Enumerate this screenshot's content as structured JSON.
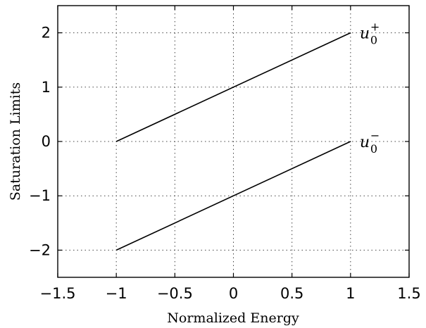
{
  "chart_data": {
    "type": "line",
    "xlabel": "Normalized Energy",
    "ylabel": "Saturation Limits",
    "xlim": [
      -1.5,
      1.5
    ],
    "ylim": [
      -2.5,
      2.5
    ],
    "xticks": [
      -1.5,
      -1,
      -0.5,
      0,
      0.5,
      1,
      1.5
    ],
    "yticks": [
      -2,
      -1,
      0,
      1,
      2
    ],
    "xtick_labels": [
      "−1.5",
      "−1",
      "−0.5",
      "0",
      "0.5",
      "1",
      "1.5"
    ],
    "ytick_labels": [
      "−2",
      "−1",
      "0",
      "1",
      "2"
    ],
    "grid": true,
    "series": [
      {
        "x": [
          -1,
          1
        ],
        "y": [
          0,
          2
        ],
        "annotation": {
          "base": "u",
          "sub": "0",
          "sup": "+"
        }
      },
      {
        "x": [
          -1,
          1
        ],
        "y": [
          -2,
          0
        ],
        "annotation": {
          "base": "u",
          "sub": "0",
          "sup": "−"
        }
      }
    ]
  }
}
